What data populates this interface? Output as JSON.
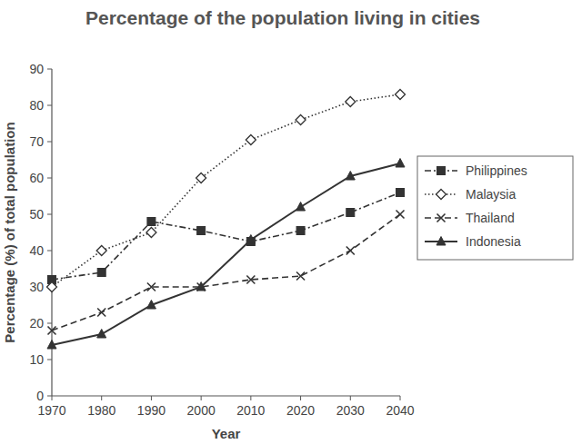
{
  "chart_data": {
    "type": "line",
    "title": "Percentage of the population living in cities",
    "x_label": "Year",
    "y_label": "Percentage (%) of total population",
    "x": [
      1970,
      1980,
      1990,
      2000,
      2010,
      2020,
      2030,
      2040
    ],
    "series": [
      {
        "name": "Philippines",
        "color": "#333333",
        "marker": "square",
        "line_style": "dashdot",
        "values": [
          32,
          34,
          48,
          45.5,
          42.5,
          45.5,
          50.5,
          56
        ]
      },
      {
        "name": "Malaysia",
        "color": "#333333",
        "marker": "diamond",
        "line_style": "dotted",
        "values": [
          30,
          40,
          45,
          60,
          70.5,
          76,
          81,
          83
        ]
      },
      {
        "name": "Thailand",
        "color": "#333333",
        "marker": "x",
        "line_style": "dashed",
        "values": [
          18,
          23,
          30,
          30,
          32,
          33,
          40,
          50
        ]
      },
      {
        "name": "Indonesia",
        "color": "#333333",
        "marker": "triangle",
        "line_style": "solid",
        "values": [
          14,
          17,
          25,
          30,
          43,
          52,
          60.5,
          64
        ]
      }
    ],
    "xlim": [
      1970,
      2040
    ],
    "xticks": [
      1970,
      1980,
      1990,
      2000,
      2010,
      2020,
      2030,
      2040
    ],
    "ylim": [
      0,
      90
    ],
    "yticks": [
      0,
      10,
      20,
      30,
      40,
      50,
      60,
      70,
      80,
      90
    ],
    "grid": false,
    "legend": "right"
  }
}
